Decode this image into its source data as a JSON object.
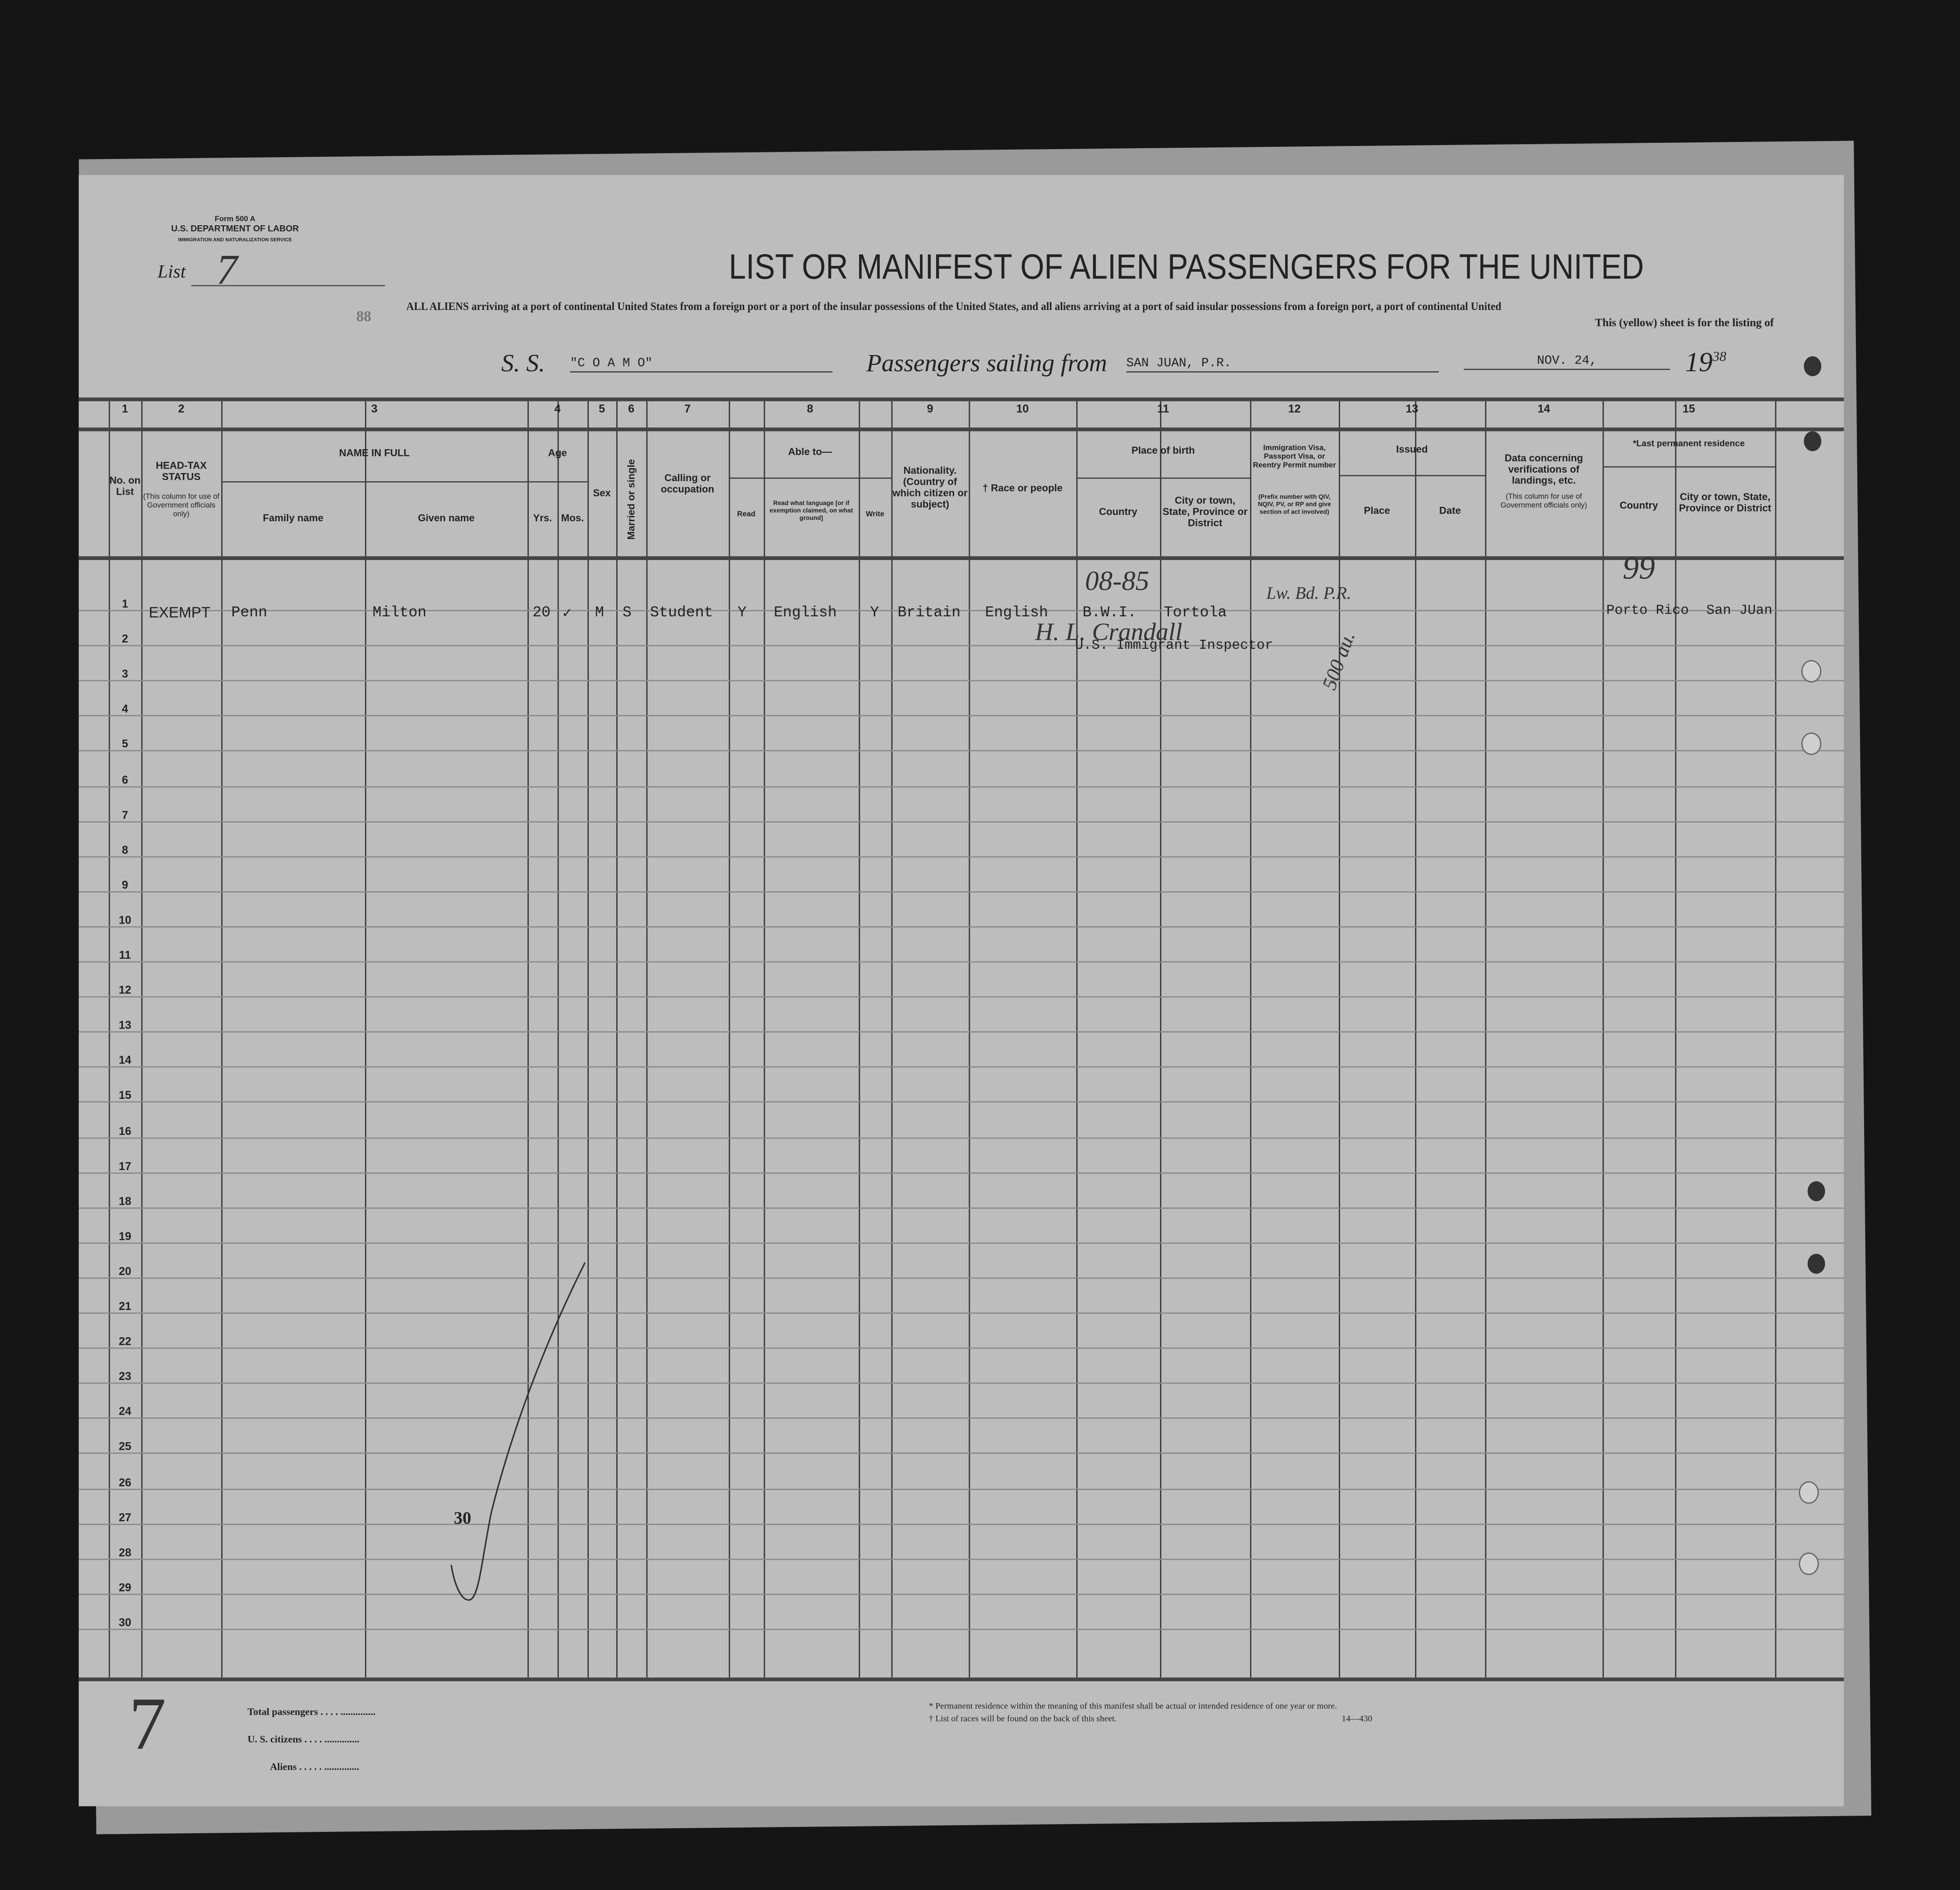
{
  "form": {
    "form_number": "Form 500 A",
    "department": "U.S. DEPARTMENT OF LABOR",
    "service": "IMMIGRATION AND NATURALIZATION SERVICE",
    "list_label": "List",
    "list_number": "7",
    "title": "LIST OR MANIFEST OF ALIEN PASSENGERS FOR THE UNITED",
    "stamp_number": "88",
    "subtitle_line1": "ALL ALIENS arriving at a port of continental United States from a foreign port or a port of the insular possessions of the United States, and all aliens arriving at a port of said insular possessions from a foreign port, a port of continental United",
    "subtitle_line2": "This (yellow) sheet is for the listing of",
    "ss_label": "S. S.",
    "ship_name": "\"C O A M O\"",
    "sailing_label": "Passengers sailing from",
    "sailing_from": "SAN JUAN, P.R.",
    "date": "NOV. 24,",
    "year_prefix": "19",
    "year_suffix": "38"
  },
  "columns": [
    {
      "number": "1",
      "label": "No. on List"
    },
    {
      "number": "2",
      "label": "HEAD-TAX STATUS",
      "note": "(This column for use of Government officials only)"
    },
    {
      "number": "3",
      "label": "NAME IN FULL",
      "sub": [
        "Family name",
        "Given name"
      ]
    },
    {
      "number": "4",
      "label": "Age",
      "sub": [
        "Yrs.",
        "Mos."
      ]
    },
    {
      "number": "5",
      "label": "Sex"
    },
    {
      "number": "6",
      "label": "Married or single"
    },
    {
      "number": "7",
      "label": "Calling or occupation"
    },
    {
      "number": "8",
      "label": "Able to—",
      "sub": [
        "Read",
        "Read what language [or if exemption claimed, on what ground]",
        "Write"
      ]
    },
    {
      "number": "9",
      "label": "Nationality. (Country of which citizen or subject)"
    },
    {
      "number": "10",
      "label": "† Race or people"
    },
    {
      "number": "11",
      "label": "Place of birth",
      "sub": [
        "Country",
        "City or town, State, Province or District"
      ]
    },
    {
      "number": "12",
      "label": "Immigration Visa, Passport Visa, or Reentry Permit number",
      "note": "(Prefix number with QIV, NQIV, PV, or RP and give section of act involved)"
    },
    {
      "number": "13",
      "label": "Issued",
      "sub": [
        "Place",
        "Date"
      ]
    },
    {
      "number": "14",
      "label": "Data concerning verifications of landings, etc.",
      "note": "(This column for use of Government officials only)"
    },
    {
      "number": "15",
      "label": "*Last permanent residence",
      "sub": [
        "Country",
        "City or town, State, Province or District"
      ]
    }
  ],
  "rows": [
    {
      "no": "1",
      "head_tax": "EXEMPT",
      "family_name": "Penn",
      "given_name": "Milton",
      "age_yrs": "20",
      "age_mos": "✓",
      "sex": "M",
      "marital": "S",
      "occupation": "Student",
      "read": "Y",
      "language": "English",
      "write": "Y",
      "nationality": "Britain",
      "race": "English",
      "birth_country": "B.W.I.",
      "birth_city": "Tortola",
      "residence_country": "Porto Rico",
      "residence_city": "San JUan"
    }
  ],
  "row_numbers": [
    "1",
    "2",
    "3",
    "4",
    "5",
    "6",
    "7",
    "8",
    "9",
    "10",
    "11",
    "12",
    "13",
    "14",
    "15",
    "16",
    "17",
    "18",
    "19",
    "20",
    "21",
    "22",
    "23",
    "24",
    "25",
    "26",
    "27",
    "28",
    "29",
    "30"
  ],
  "annotations": {
    "birth_code": "08-85",
    "visa_note": "Lw. Bd. P.R.",
    "residence_code": "99",
    "inspector_signature": "H. L. Crandall",
    "inspector_title": "U.S. Immigrant Inspector",
    "visa_note2": "500 au.",
    "margin_count": "30",
    "margin_list": "7"
  },
  "footer": {
    "total_passengers": "Total passengers",
    "us_citizens": "U. S. citizens",
    "aliens": "Aliens",
    "note1": "* Permanent residence within the meaning of this manifest shall be actual or intended residence of one year or more.",
    "note2": "† List of races will be found on the back of this sheet.",
    "code": "14—430"
  }
}
